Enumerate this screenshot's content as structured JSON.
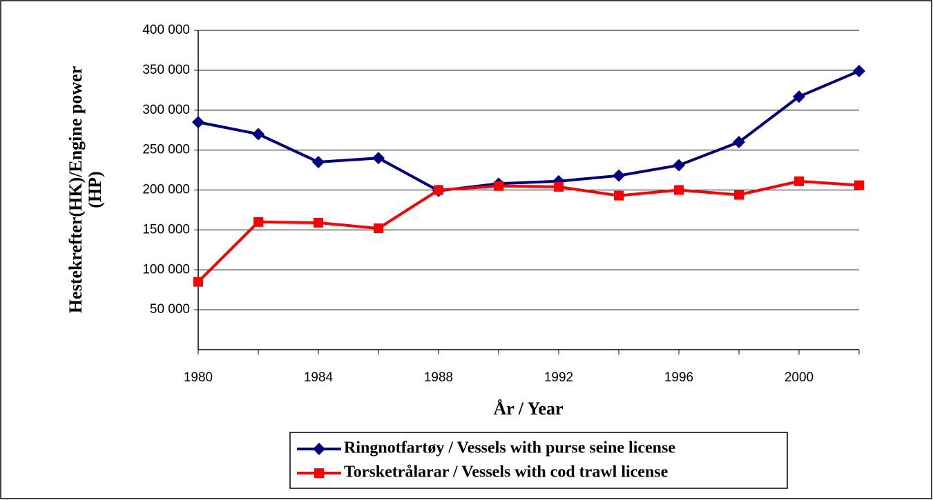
{
  "chart_data": {
    "type": "line",
    "y_label": [
      "Hestekrefter(HK)/Engine power",
      "(HP)"
    ],
    "x_label": "År / Year",
    "categories": [
      "1980",
      null,
      "1984",
      null,
      "1988",
      null,
      "1992",
      null,
      "1996",
      null,
      "2000",
      null
    ],
    "series": [
      {
        "name": "Ringnotfartøy / Vessels with purse seine license",
        "color": "#000080",
        "marker": "diamond",
        "values": [
          285000,
          270000,
          235000,
          240000,
          199000,
          208000,
          211000,
          218000,
          231000,
          260000,
          317000,
          349000
        ]
      },
      {
        "name": "Torsketrålarar / Vessels with cod trawl license",
        "color": "#ff0000",
        "marker": "square",
        "values": [
          85000,
          160000,
          159000,
          152000,
          200000,
          205000,
          204000,
          193000,
          200000,
          194000,
          211000,
          206000
        ]
      }
    ],
    "ylim": [
      0,
      400000
    ],
    "yticks": [
      {
        "value": 50000,
        "label": "50 000"
      },
      {
        "value": 100000,
        "label": "100 000"
      },
      {
        "value": 150000,
        "label": "150 000"
      },
      {
        "value": 200000,
        "label": "200 000"
      },
      {
        "value": 250000,
        "label": "250 000"
      },
      {
        "value": 300000,
        "label": "300 000"
      },
      {
        "value": 350000,
        "label": "350 000"
      },
      {
        "value": 400000,
        "label": "400 000"
      }
    ],
    "grid": true
  }
}
